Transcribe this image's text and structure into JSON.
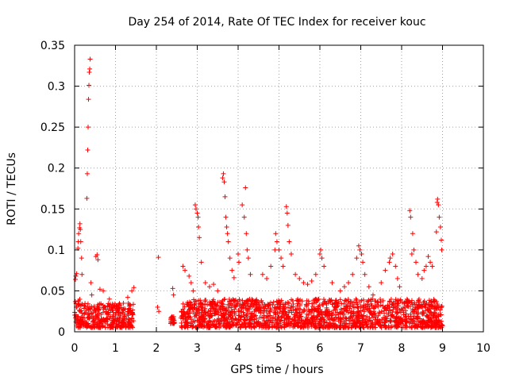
{
  "chart_data": {
    "type": "scatter",
    "title": "Day 254 of 2014, Rate Of TEC Index for receiver kouc",
    "xlabel": "GPS time / hours",
    "ylabel": "ROTI / TECUs",
    "xlim": [
      0,
      10
    ],
    "ylim": [
      0,
      0.35
    ],
    "x_ticks": [
      0,
      1,
      2,
      3,
      4,
      5,
      6,
      7,
      8,
      9,
      10
    ],
    "y_ticks": [
      0,
      0.05,
      0.1,
      0.15,
      0.2,
      0.25,
      0.3,
      0.35
    ],
    "x_tick_labels": [
      "0",
      "1",
      "2",
      "3",
      "4",
      "5",
      "6",
      "7",
      "8",
      "9",
      "10"
    ],
    "y_tick_labels": [
      "0",
      "0.05",
      "0.1",
      "0.15",
      "0.2",
      "0.25",
      "0.3",
      "0.35"
    ],
    "grid": true,
    "marker": "+",
    "marker_color": "#ff0000",
    "series": [
      {
        "name": "ROTI",
        "points": [
          [
            0.02,
            0.064
          ],
          [
            0.03,
            0.068
          ],
          [
            0.05,
            0.071
          ],
          [
            0.08,
            0.102
          ],
          [
            0.09,
            0.11
          ],
          [
            0.1,
            0.12
          ],
          [
            0.12,
            0.127
          ],
          [
            0.13,
            0.132
          ],
          [
            0.14,
            0.125
          ],
          [
            0.15,
            0.11
          ],
          [
            0.17,
            0.09
          ],
          [
            0.18,
            0.07
          ],
          [
            0.3,
            0.163
          ],
          [
            0.31,
            0.193
          ],
          [
            0.32,
            0.222
          ],
          [
            0.33,
            0.25
          ],
          [
            0.34,
            0.284
          ],
          [
            0.35,
            0.301
          ],
          [
            0.36,
            0.317
          ],
          [
            0.37,
            0.321
          ],
          [
            0.38,
            0.333
          ],
          [
            0.4,
            0.06
          ],
          [
            0.42,
            0.045
          ],
          [
            0.52,
            0.092
          ],
          [
            0.55,
            0.094
          ],
          [
            0.57,
            0.088
          ],
          [
            0.62,
            0.052
          ],
          [
            0.7,
            0.05
          ],
          [
            0.85,
            0.04
          ],
          [
            1.3,
            0.042
          ],
          [
            1.4,
            0.05
          ],
          [
            1.45,
            0.054
          ],
          [
            2.05,
            0.091
          ],
          [
            2.03,
            0.03
          ],
          [
            2.06,
            0.025
          ],
          [
            2.4,
            0.053
          ],
          [
            2.42,
            0.045
          ],
          [
            2.41,
            0.016
          ],
          [
            2.43,
            0.014
          ],
          [
            2.65,
            0.08
          ],
          [
            2.7,
            0.075
          ],
          [
            2.8,
            0.068
          ],
          [
            2.85,
            0.06
          ],
          [
            2.9,
            0.05
          ],
          [
            2.95,
            0.155
          ],
          [
            2.97,
            0.15
          ],
          [
            3.0,
            0.145
          ],
          [
            3.02,
            0.14
          ],
          [
            3.03,
            0.128
          ],
          [
            3.05,
            0.115
          ],
          [
            3.1,
            0.085
          ],
          [
            3.2,
            0.06
          ],
          [
            3.3,
            0.055
          ],
          [
            3.4,
            0.058
          ],
          [
            3.5,
            0.05
          ],
          [
            3.62,
            0.188
          ],
          [
            3.64,
            0.193
          ],
          [
            3.66,
            0.183
          ],
          [
            3.68,
            0.165
          ],
          [
            3.7,
            0.14
          ],
          [
            3.72,
            0.128
          ],
          [
            3.74,
            0.12
          ],
          [
            3.76,
            0.11
          ],
          [
            3.8,
            0.09
          ],
          [
            3.85,
            0.075
          ],
          [
            3.9,
            0.066
          ],
          [
            4.0,
            0.095
          ],
          [
            4.02,
            0.085
          ],
          [
            4.1,
            0.155
          ],
          [
            4.15,
            0.14
          ],
          [
            4.18,
            0.176
          ],
          [
            4.2,
            0.12
          ],
          [
            4.22,
            0.1
          ],
          [
            4.25,
            0.09
          ],
          [
            4.3,
            0.07
          ],
          [
            4.6,
            0.07
          ],
          [
            4.7,
            0.065
          ],
          [
            4.8,
            0.08
          ],
          [
            4.9,
            0.1
          ],
          [
            4.92,
            0.12
          ],
          [
            4.95,
            0.11
          ],
          [
            5.0,
            0.1
          ],
          [
            5.05,
            0.09
          ],
          [
            5.1,
            0.08
          ],
          [
            5.18,
            0.153
          ],
          [
            5.2,
            0.145
          ],
          [
            5.22,
            0.13
          ],
          [
            5.25,
            0.11
          ],
          [
            5.3,
            0.095
          ],
          [
            5.4,
            0.07
          ],
          [
            5.5,
            0.065
          ],
          [
            5.6,
            0.06
          ],
          [
            5.7,
            0.058
          ],
          [
            5.8,
            0.062
          ],
          [
            5.9,
            0.07
          ],
          [
            6.0,
            0.095
          ],
          [
            6.02,
            0.1
          ],
          [
            6.05,
            0.09
          ],
          [
            6.1,
            0.08
          ],
          [
            6.3,
            0.06
          ],
          [
            6.5,
            0.05
          ],
          [
            6.6,
            0.055
          ],
          [
            6.7,
            0.06
          ],
          [
            6.8,
            0.07
          ],
          [
            6.9,
            0.09
          ],
          [
            6.95,
            0.105
          ],
          [
            6.98,
            0.1
          ],
          [
            7.02,
            0.095
          ],
          [
            7.05,
            0.085
          ],
          [
            7.1,
            0.07
          ],
          [
            7.2,
            0.055
          ],
          [
            7.3,
            0.045
          ],
          [
            7.5,
            0.06
          ],
          [
            7.6,
            0.075
          ],
          [
            7.7,
            0.085
          ],
          [
            7.72,
            0.09
          ],
          [
            7.78,
            0.095
          ],
          [
            7.85,
            0.08
          ],
          [
            7.9,
            0.065
          ],
          [
            7.95,
            0.055
          ],
          [
            8.2,
            0.148
          ],
          [
            8.22,
            0.14
          ],
          [
            8.25,
            0.095
          ],
          [
            8.27,
            0.12
          ],
          [
            8.3,
            0.1
          ],
          [
            8.35,
            0.085
          ],
          [
            8.4,
            0.07
          ],
          [
            8.5,
            0.065
          ],
          [
            8.55,
            0.075
          ],
          [
            8.6,
            0.08
          ],
          [
            8.65,
            0.092
          ],
          [
            8.7,
            0.085
          ],
          [
            8.75,
            0.08
          ],
          [
            8.85,
            0.122
          ],
          [
            8.87,
            0.158
          ],
          [
            8.88,
            0.162
          ],
          [
            8.9,
            0.155
          ],
          [
            8.92,
            0.14
          ],
          [
            8.95,
            0.128
          ],
          [
            8.97,
            0.112
          ],
          [
            8.98,
            0.1
          ]
        ]
      }
    ],
    "dense_bands": [
      {
        "x_start": 0.0,
        "x_end": 0.2,
        "y_min": 0.005,
        "y_max": 0.04
      },
      {
        "x_start": 0.2,
        "x_end": 1.45,
        "y_min": 0.005,
        "y_max": 0.035
      },
      {
        "x_start": 2.35,
        "x_end": 2.45,
        "y_min": 0.01,
        "y_max": 0.02
      },
      {
        "x_start": 2.6,
        "x_end": 9.0,
        "y_min": 0.005,
        "y_max": 0.04
      }
    ]
  }
}
